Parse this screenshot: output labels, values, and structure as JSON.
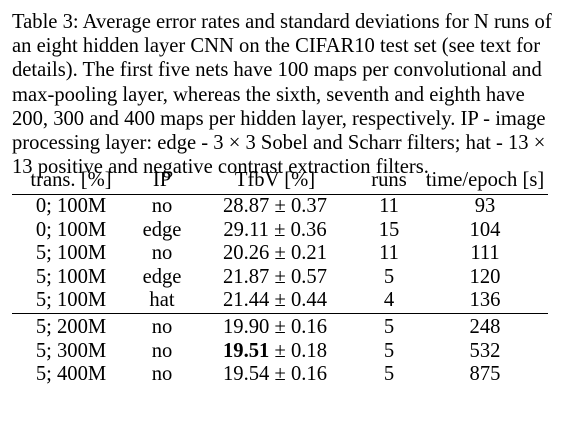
{
  "caption": "Table 3:  Average error rates and standard deviations for N runs of an eight hidden layer CNN on the CIFAR10 test set (see text for details).  The first five nets have 100 maps per convolutional and max-pooling layer, whereas the sixth, seventh and eighth have 200, 300 and 400 maps per hidden layer, respectively. IP - image processing layer: edge - 3 × 3 Sobel and Scharr filters; hat - 13 × 13 positive and negative contrast extraction filters.",
  "table": {
    "headers": [
      "trans. [%]",
      "IP",
      "TfbV [%]",
      "runs",
      "time/epoch [s]"
    ],
    "rows": [
      {
        "trans": "0; 100M",
        "ip": "no",
        "tfbv_mean": "28.87",
        "tfbv_std": "0.37",
        "runs": "11",
        "time": "93"
      },
      {
        "trans": "0; 100M",
        "ip": "edge",
        "tfbv_mean": "29.11",
        "tfbv_std": "0.36",
        "runs": "15",
        "time": "104"
      },
      {
        "trans": "5; 100M",
        "ip": "no",
        "tfbv_mean": "20.26",
        "tfbv_std": "0.21",
        "runs": "11",
        "time": "111"
      },
      {
        "trans": "5; 100M",
        "ip": "edge",
        "tfbv_mean": "21.87",
        "tfbv_std": "0.57",
        "runs": "5",
        "time": "120"
      },
      {
        "trans": "5; 100M",
        "ip": "hat",
        "tfbv_mean": "21.44",
        "tfbv_std": "0.44",
        "runs": "4",
        "time": "136"
      },
      {
        "trans": "5; 200M",
        "ip": "no",
        "tfbv_mean": "19.90",
        "tfbv_std": "0.16",
        "runs": "5",
        "time": "248"
      },
      {
        "trans": "5; 300M",
        "ip": "no",
        "tfbv_mean": "19.51",
        "tfbv_std": "0.18",
        "runs": "5",
        "time": "532"
      },
      {
        "trans": "5; 400M",
        "ip": "no",
        "tfbv_mean": "19.54",
        "tfbv_std": "0.16",
        "runs": "5",
        "time": "875"
      }
    ],
    "pm_symbol": "±",
    "best_value": "19.51"
  }
}
